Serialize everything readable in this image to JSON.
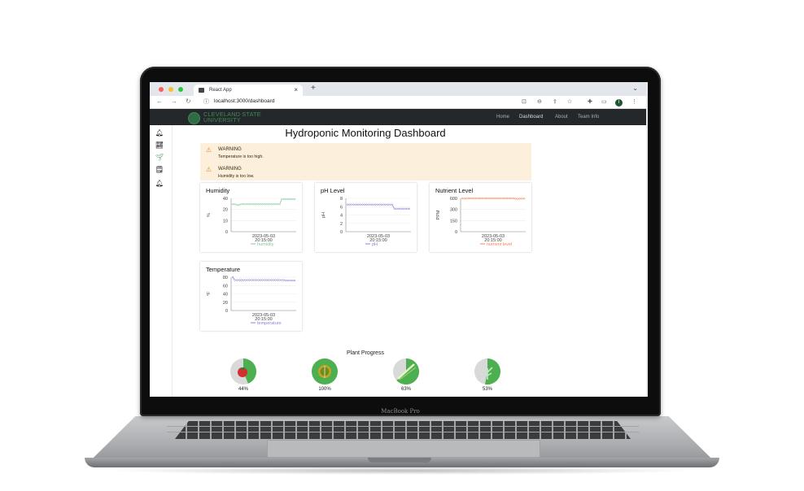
{
  "laptop": {
    "brand": "MacBook Pro"
  },
  "browser": {
    "tab_title": "React App",
    "tab_close": "×",
    "new_tab": "+",
    "tab_menu": "⌄",
    "url": "localhost:3000/dashboard",
    "profile_initial": "I"
  },
  "navbar": {
    "logo_text": "CLEVELAND STATE\nUNIVERSITY",
    "links": [
      "Home",
      "Dashboard",
      "About",
      "Team Info"
    ]
  },
  "page": {
    "title": "Hydroponic Monitoring Dashboard",
    "alerts": [
      {
        "title": "WARNING",
        "message": "Temperature is too high."
      },
      {
        "title": "WARNING",
        "message": "Humidity is too low."
      }
    ]
  },
  "colors": {
    "humidity": "#82ca9d",
    "ph": "#8884d8",
    "nutrient": "#ff7f50",
    "temperature": "#8884d8",
    "alert_bg": "#fcefdc",
    "navbar_bg": "#25282b",
    "brand_green": "#3d8a57",
    "progress_green": "#4caf50"
  },
  "chart_data": [
    {
      "type": "line",
      "title": "Humidity",
      "ylabel": "%",
      "yticks": [
        "40",
        "20",
        "10",
        "0"
      ],
      "xtick_date": "2023-05-03",
      "xtick_time": "20:15:00",
      "legend": "humidity",
      "ylim": [
        0,
        40
      ],
      "series": [
        {
          "name": "humidity",
          "values": [
            33,
            33,
            32,
            32,
            33,
            33,
            33,
            33,
            33,
            33,
            33,
            33,
            33,
            33,
            33,
            33,
            33,
            33,
            33,
            33,
            33,
            33,
            33,
            39,
            39,
            39,
            39,
            39,
            39,
            39
          ]
        }
      ]
    },
    {
      "type": "line",
      "title": "pH Level",
      "ylabel": "pH",
      "yticks": [
        "8",
        "6",
        "4",
        "2",
        "0"
      ],
      "xtick_date": "2023-05-03",
      "xtick_time": "20:15:00",
      "legend": "pH",
      "ylim": [
        0,
        8
      ],
      "series": [
        {
          "name": "pH",
          "values": [
            6.5,
            6.5,
            6.5,
            6.5,
            6.5,
            6.5,
            6.5,
            6.5,
            6.5,
            6.5,
            6.5,
            6.5,
            6.5,
            6.5,
            6.5,
            6.5,
            6.5,
            6.5,
            6.5,
            6.5,
            6.5,
            6.5,
            5.5,
            5.5,
            5.5,
            5.5,
            5.5,
            5.5,
            5.5,
            5.5
          ]
        }
      ]
    },
    {
      "type": "line",
      "title": "Nutrient Level",
      "ylabel": "PPM",
      "yticks": [
        "600",
        "300",
        "150",
        "0"
      ],
      "xtick_date": "2023-05-03",
      "xtick_time": "20:15:00",
      "legend": "nutrient level",
      "ylim": [
        0,
        600
      ],
      "series": [
        {
          "name": "nutrient level",
          "values": [
            600,
            595,
            598,
            600,
            600,
            600,
            600,
            600,
            600,
            600,
            600,
            600,
            600,
            600,
            600,
            600,
            600,
            600,
            600,
            600,
            600,
            600,
            600,
            600,
            600,
            595,
            590,
            595,
            595,
            595
          ]
        }
      ]
    },
    {
      "type": "line",
      "title": "Temperature",
      "ylabel": "°F",
      "yticks": [
        "80",
        "60",
        "40",
        "20",
        "0"
      ],
      "xtick_date": "2023-05-03",
      "xtick_time": "20:15:00",
      "legend": "temperature",
      "ylim": [
        0,
        80
      ],
      "series": [
        {
          "name": "temperature",
          "values": [
            80,
            73,
            73,
            73,
            73,
            73,
            73,
            73,
            73,
            73,
            73,
            73,
            73,
            73,
            73,
            73,
            73,
            73,
            73,
            73,
            73,
            73,
            73,
            73,
            73,
            72,
            72,
            72,
            72,
            72
          ]
        }
      ]
    }
  ],
  "plant_progress": {
    "title": "Plant Progress",
    "plants": [
      {
        "name": "tomato",
        "percent": 44,
        "label": "44%",
        "icon": "tomato-icon"
      },
      {
        "name": "lettuce",
        "percent": 100,
        "label": "100%",
        "icon": "lettuce-icon"
      },
      {
        "name": "green onion",
        "percent": 63,
        "label": "63%",
        "icon": "green-onion-icon"
      },
      {
        "name": "herb",
        "percent": 53,
        "label": "53%",
        "icon": "herb-icon"
      }
    ]
  }
}
